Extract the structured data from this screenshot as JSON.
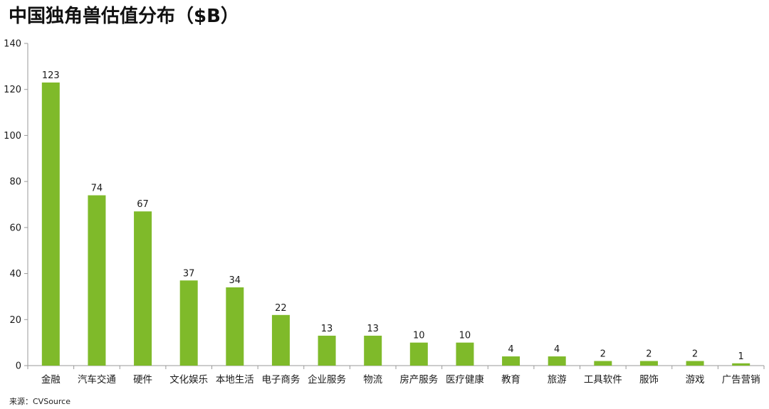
{
  "page": {
    "title": "中国独角兽估值分布（$B）",
    "source": "来源：CVSource"
  },
  "chart_data": {
    "type": "bar",
    "title": "中国独角兽估值分布（$B）",
    "xlabel": "",
    "ylabel": "",
    "categories": [
      "金融",
      "汽车交通",
      "硬件",
      "文化娱乐",
      "本地生活",
      "电子商务",
      "企业服务",
      "物流",
      "房产服务",
      "医疗健康",
      "教育",
      "旅游",
      "工具软件",
      "服饰",
      "游戏",
      "广告营销"
    ],
    "values": [
      123,
      74,
      67,
      37,
      34,
      22,
      13,
      13,
      10,
      10,
      4,
      4,
      2,
      2,
      2,
      1
    ],
    "ylim": [
      0,
      140
    ],
    "yticks": [
      0,
      20,
      40,
      60,
      80,
      100,
      120,
      140
    ],
    "bar_color": "#7fba2a",
    "grid": false,
    "legend": "none",
    "data_labels": true
  }
}
